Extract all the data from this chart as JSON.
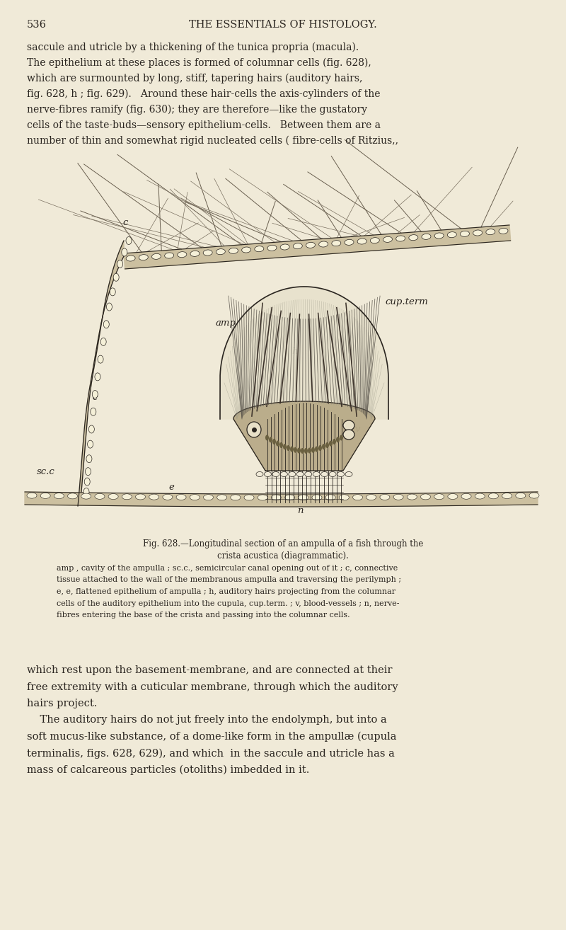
{
  "bg_color": "#f0ead8",
  "page_number": "536",
  "header": "THE ESSENTIALS OF HISTOLOGY.",
  "top_texts": [
    "saccule and utricle by a thickening of the tunica propria (macula).",
    "The epithelium at these places is formed of columnar cells (fig. 628),",
    "which are surmounted by long, stiff, tapering hairs (auditory hairs,",
    "fig. 628, h ; fig. 629).   Around these hair-cells the axis-cylinders of the",
    "nerve-fibres ramify (fig. 630); they are therefore—like the gustatory",
    "cells of the taste-buds—sensory epithelium-cells.   Between them are a",
    "number of thin and somewhat rigid nucleated cells ( fibre-cells of Ritzius,,"
  ],
  "bottom_texts": [
    "which rest upon the basement-membrane, and are connected at their",
    "free extremity with a cuticular membrane, through which the auditory",
    "hairs project.",
    "    The auditory hairs do not jut freely into the endolymph, but into a",
    "soft mucus-like substance, of a dome-like form in the ampullæ (cupula",
    "terminalis, figs. 628, 629), and which  in the saccule and utricle has a",
    "mass of calcareous particles (otoliths) imbedded in it."
  ],
  "cap_simple": [
    "amp , cavity of the ampulla ; sc.c., semicircular canal opening out of it ; c, connective",
    "tissue attached to the wall of the membranous ampulla and traversing the perilymph ;",
    "e, e, flattened epithelium of ampulla ; h, auditory hairs projecting from the columnar",
    "cells of the auditory epithelium into the cupula, cup.term. ; v, blood-vessels ; n, nerve-",
    "fibres entering the base of the crista and passing into the columnar cells."
  ]
}
